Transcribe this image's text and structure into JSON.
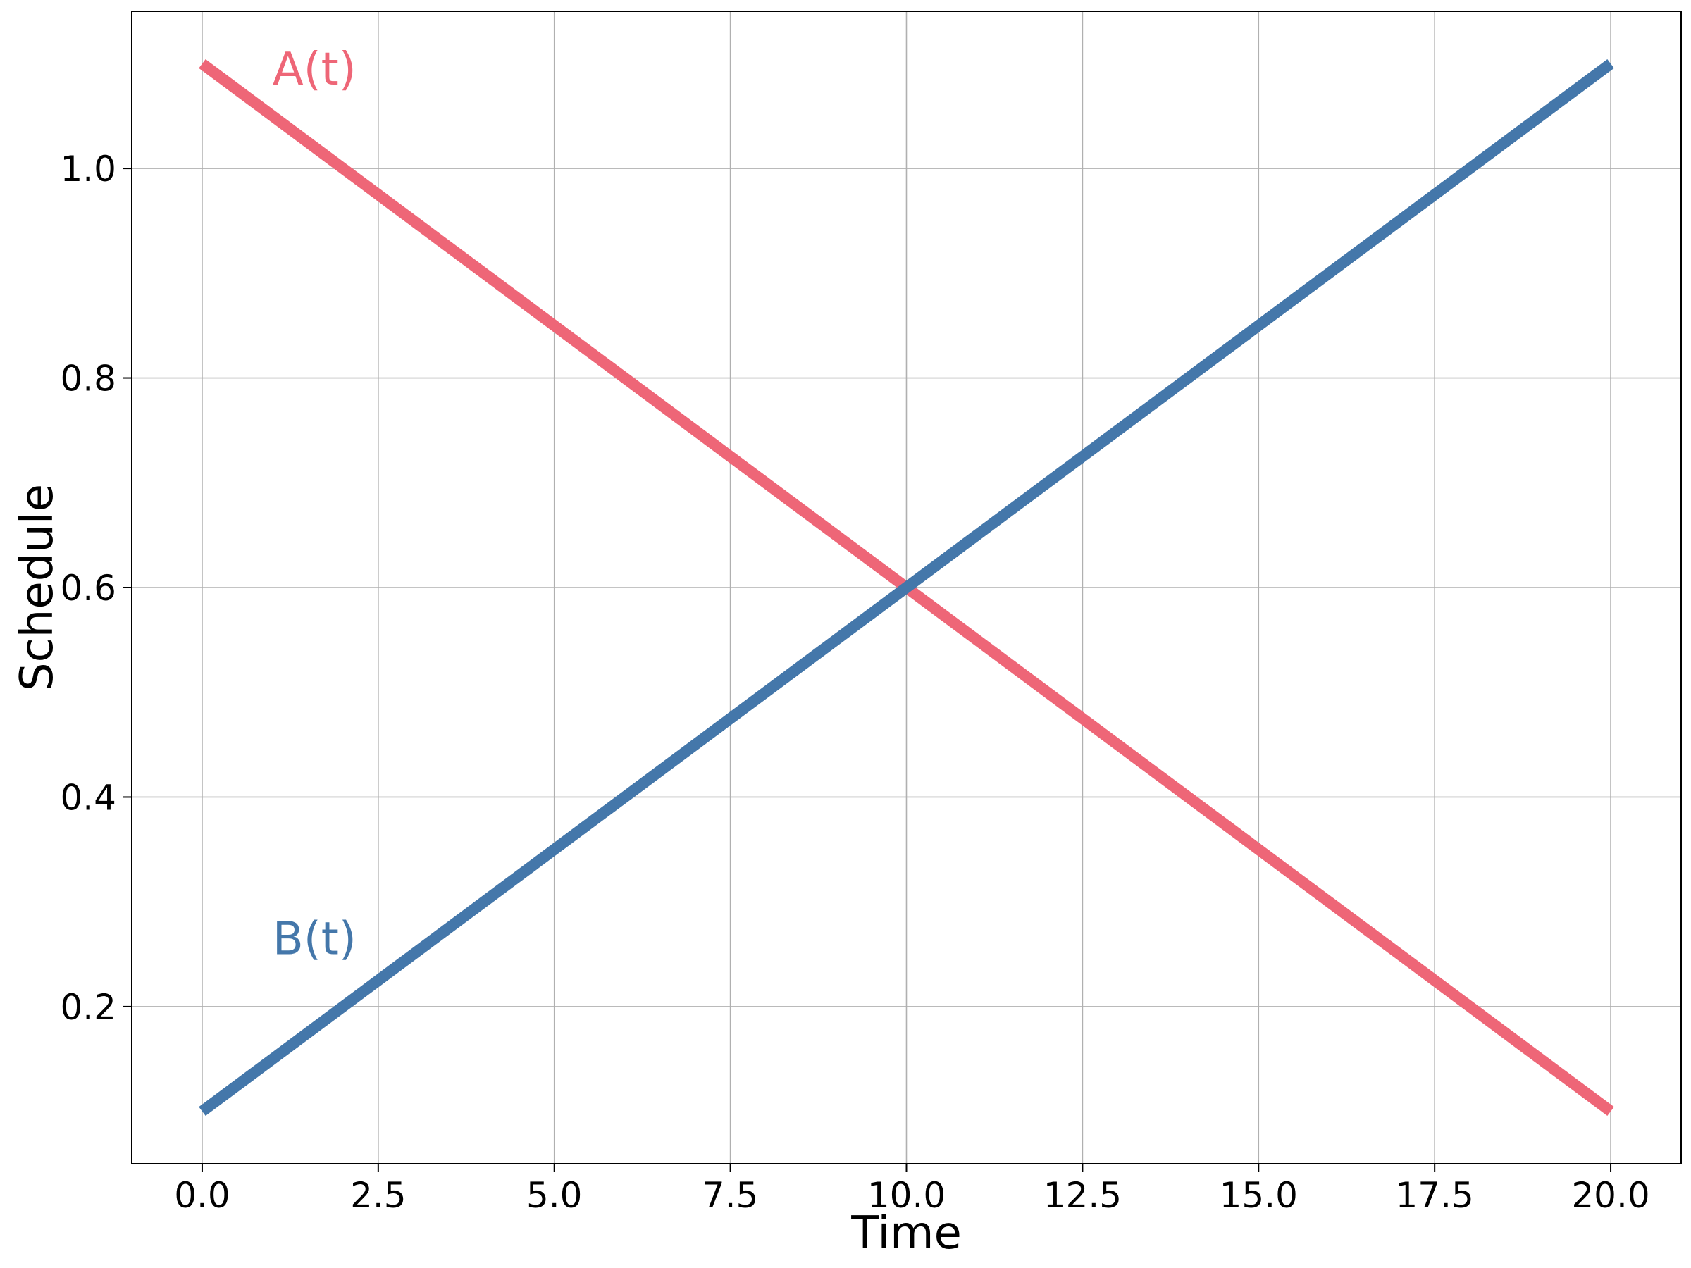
{
  "chart_data": {
    "type": "line",
    "title": "",
    "xlabel": "Time",
    "ylabel": "Schedule",
    "xlim": [
      -1.0,
      21.0
    ],
    "ylim": [
      0.05,
      1.15
    ],
    "xticks": [
      0.0,
      2.5,
      5.0,
      7.5,
      10.0,
      12.5,
      15.0,
      17.5,
      20.0
    ],
    "xtick_labels": [
      "0.0",
      "2.5",
      "5.0",
      "7.5",
      "10.0",
      "12.5",
      "15.0",
      "17.5",
      "20.0"
    ],
    "yticks": [
      0.2,
      0.4,
      0.6,
      0.8,
      1.0
    ],
    "ytick_labels": [
      "0.2",
      "0.4",
      "0.6",
      "0.8",
      "1.0"
    ],
    "grid": true,
    "legend": "none",
    "series": [
      {
        "name": "A(t)",
        "color": "#ee6677",
        "x": [
          0,
          20
        ],
        "y": [
          1.1,
          0.1
        ]
      },
      {
        "name": "B(t)",
        "color": "#4477aa",
        "x": [
          0,
          20
        ],
        "y": [
          0.1,
          1.1
        ]
      }
    ],
    "annotations": [
      {
        "text": "A(t)",
        "series": 0,
        "x": 1.0,
        "y": 1.08
      },
      {
        "text": "B(t)",
        "series": 1,
        "x": 1.0,
        "y": 0.25
      }
    ]
  }
}
